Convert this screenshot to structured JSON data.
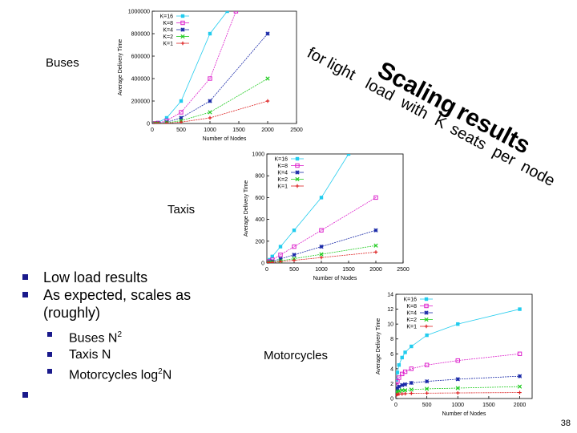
{
  "labels": {
    "buses": "Buses",
    "taxis": "Taxis",
    "motorcycles": "Motorcycles"
  },
  "title_words": {
    "for": "for",
    "light": "light",
    "load": "load",
    "with": "with",
    "k": "K",
    "seats": "seats",
    "per": "per",
    "node": "node",
    "scaling": "Scaling",
    "results": "results"
  },
  "bullets": [
    {
      "text": "Low load results"
    },
    {
      "text": "As expected, scales as (roughly)"
    }
  ],
  "sub_bullets": [
    {
      "text": "Buses N",
      "sup": "2"
    },
    {
      "text": "Taxis N",
      "sup": ""
    },
    {
      "text": "Motorcycles log",
      "sup": "2",
      "tail": "N"
    }
  ],
  "page_number": "38",
  "colors": {
    "bullet": "#1a1a8c",
    "K16": "#22ccee",
    "K8": "#dd22cc",
    "K4": "#1a2aa8",
    "K2": "#22cc22",
    "K1": "#dd2222"
  },
  "chart_data": [
    {
      "type": "line",
      "xlabel": "Number of Nodes",
      "ylabel": "Average Delivery Time",
      "xlim": [
        0,
        2500
      ],
      "ylim": [
        0,
        1000000
      ],
      "xticks": [
        "0",
        "500",
        "1000",
        "1500",
        "2000",
        "2500"
      ],
      "yticks": [
        "0",
        "200000",
        "400000",
        "600000",
        "800000",
        "1000000"
      ],
      "legend": "top-left",
      "series": [
        {
          "name": "K=16",
          "x": [
            50,
            100,
            250,
            500,
            1000,
            1300
          ],
          "y": [
            2000,
            8000,
            50000,
            200000,
            800000,
            1000000
          ]
        },
        {
          "name": "K=8",
          "x": [
            50,
            100,
            250,
            500,
            1000,
            1450
          ],
          "y": [
            1000,
            4000,
            25000,
            100000,
            400000,
            1000000
          ]
        },
        {
          "name": "K=4",
          "x": [
            50,
            100,
            250,
            500,
            1000,
            2000
          ],
          "y": [
            500,
            2000,
            12000,
            50000,
            200000,
            800000
          ]
        },
        {
          "name": "K=2",
          "x": [
            50,
            100,
            250,
            500,
            1000,
            2000
          ],
          "y": [
            300,
            1000,
            6000,
            25000,
            100000,
            400000
          ]
        },
        {
          "name": "K=1",
          "x": [
            50,
            100,
            250,
            500,
            1000,
            2000
          ],
          "y": [
            100,
            500,
            3000,
            12000,
            50000,
            200000
          ]
        }
      ]
    },
    {
      "type": "line",
      "xlabel": "Number of Nodes",
      "ylabel": "Average Delivery Time",
      "xlim": [
        0,
        2500
      ],
      "ylim": [
        0,
        1000
      ],
      "xticks": [
        "0",
        "500",
        "1000",
        "1500",
        "2000",
        "2500"
      ],
      "yticks": [
        "0",
        "200",
        "400",
        "600",
        "800",
        "1000"
      ],
      "legend": "top-left",
      "series": [
        {
          "name": "K=16",
          "x": [
            10,
            50,
            100,
            250,
            500,
            1000,
            1500
          ],
          "y": [
            10,
            30,
            60,
            150,
            300,
            600,
            1000
          ]
        },
        {
          "name": "K=8",
          "x": [
            10,
            50,
            100,
            250,
            500,
            1000,
            2000
          ],
          "y": [
            5,
            15,
            30,
            75,
            150,
            300,
            600
          ]
        },
        {
          "name": "K=4",
          "x": [
            10,
            50,
            100,
            250,
            500,
            1000,
            2000
          ],
          "y": [
            3,
            8,
            15,
            38,
            75,
            150,
            300
          ]
        },
        {
          "name": "K=2",
          "x": [
            10,
            50,
            100,
            250,
            500,
            1000,
            2000
          ],
          "y": [
            2,
            5,
            8,
            20,
            40,
            80,
            160
          ]
        },
        {
          "name": "K=1",
          "x": [
            10,
            50,
            100,
            250,
            500,
            1000,
            2000
          ],
          "y": [
            1,
            3,
            5,
            12,
            25,
            50,
            100
          ]
        }
      ]
    },
    {
      "type": "line",
      "xlabel": "Number of Nodes",
      "ylabel": "Average Delivery Time",
      "xlim": [
        0,
        2200
      ],
      "ylim": [
        0,
        14
      ],
      "xticks": [
        "0",
        "500",
        "1000",
        "1500",
        "2000"
      ],
      "yticks": [
        "0",
        "2",
        "4",
        "6",
        "8",
        "10",
        "12",
        "14"
      ],
      "legend": "top-left",
      "series": [
        {
          "name": "K=16",
          "x": [
            10,
            25,
            50,
            100,
            150,
            250,
            500,
            1000,
            2000
          ],
          "y": [
            2.5,
            3.5,
            4.5,
            5.5,
            6.2,
            7,
            8.5,
            10,
            12
          ]
        },
        {
          "name": "K=8",
          "x": [
            10,
            25,
            50,
            100,
            150,
            250,
            500,
            1000,
            2000
          ],
          "y": [
            1.8,
            2.3,
            2.8,
            3.3,
            3.6,
            4,
            4.5,
            5.1,
            6
          ]
        },
        {
          "name": "K=4",
          "x": [
            10,
            25,
            50,
            100,
            150,
            250,
            500,
            1000,
            2000
          ],
          "y": [
            1.2,
            1.4,
            1.6,
            1.8,
            1.9,
            2.1,
            2.3,
            2.6,
            3
          ]
        },
        {
          "name": "K=2",
          "x": [
            10,
            25,
            50,
            100,
            150,
            250,
            500,
            1000,
            2000
          ],
          "y": [
            0.8,
            0.9,
            1,
            1.1,
            1.1,
            1.2,
            1.3,
            1.4,
            1.6
          ]
        },
        {
          "name": "K=1",
          "x": [
            10,
            25,
            50,
            100,
            150,
            250,
            500,
            1000,
            2000
          ],
          "y": [
            0.5,
            0.55,
            0.6,
            0.62,
            0.65,
            0.7,
            0.72,
            0.75,
            0.8
          ]
        }
      ]
    }
  ]
}
